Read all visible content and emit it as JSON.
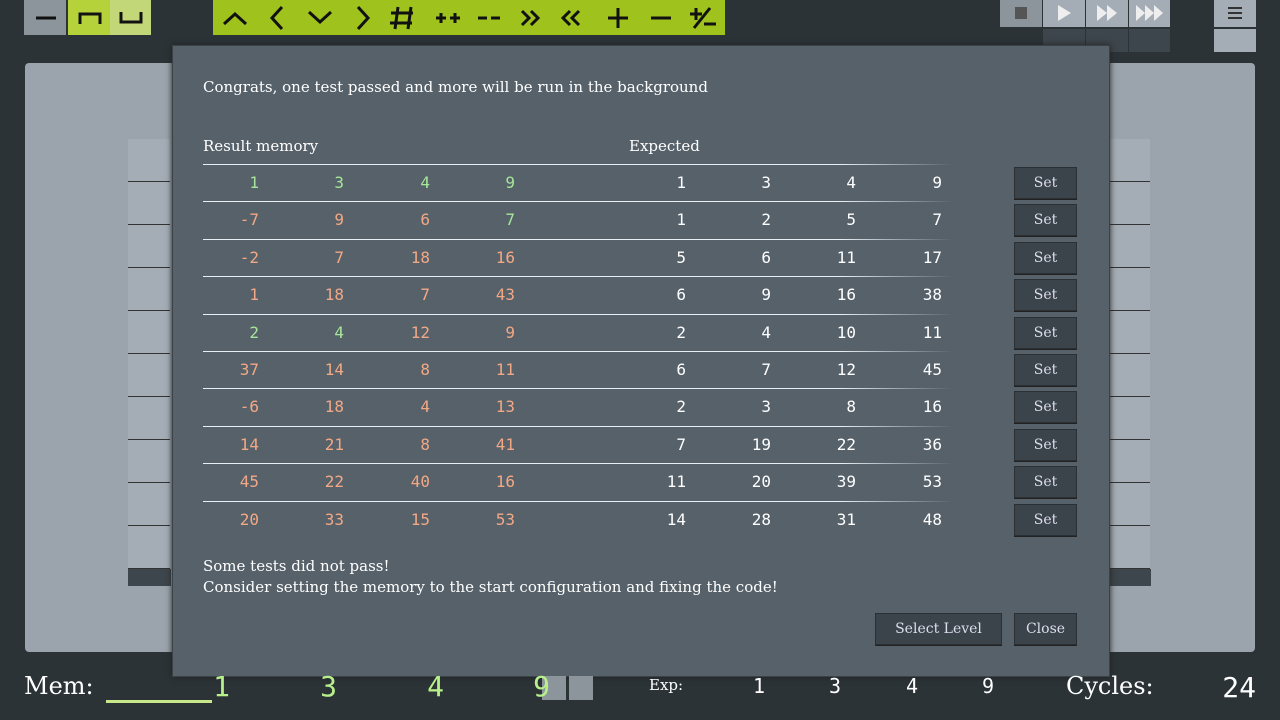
{
  "dialog": {
    "message": "Congrats, one test passed and more will be run in the background",
    "result_header": "Result memory",
    "expected_header": "Expected",
    "rows": [
      {
        "result": [
          1,
          3,
          4,
          9
        ],
        "expected": [
          1,
          3,
          4,
          9
        ],
        "button": "Set"
      },
      {
        "result": [
          -7,
          9,
          6,
          7
        ],
        "expected": [
          1,
          2,
          5,
          7
        ],
        "button": "Set"
      },
      {
        "result": [
          -2,
          7,
          18,
          16
        ],
        "expected": [
          5,
          6,
          11,
          17
        ],
        "button": "Set"
      },
      {
        "result": [
          1,
          18,
          7,
          43
        ],
        "expected": [
          6,
          9,
          16,
          38
        ],
        "button": "Set"
      },
      {
        "result": [
          2,
          4,
          12,
          9
        ],
        "expected": [
          2,
          4,
          10,
          11
        ],
        "button": "Set"
      },
      {
        "result": [
          37,
          14,
          8,
          11
        ],
        "expected": [
          6,
          7,
          12,
          45
        ],
        "button": "Set"
      },
      {
        "result": [
          -6,
          18,
          4,
          13
        ],
        "expected": [
          2,
          3,
          8,
          16
        ],
        "button": "Set"
      },
      {
        "result": [
          14,
          21,
          8,
          41
        ],
        "expected": [
          7,
          19,
          22,
          36
        ],
        "button": "Set"
      },
      {
        "result": [
          45,
          22,
          40,
          16
        ],
        "expected": [
          11,
          20,
          39,
          53
        ],
        "button": "Set"
      },
      {
        "result": [
          20,
          33,
          15,
          53
        ],
        "expected": [
          14,
          28,
          31,
          48
        ],
        "button": "Set"
      }
    ],
    "footer": [
      "Some tests did not pass!",
      "Consider setting the memory to the start configuration and fixing the code!"
    ],
    "buttons": [
      "Select Level",
      "Close"
    ]
  },
  "status_bar": {
    "mem_label": "Mem:",
    "mem": [
      1,
      3,
      4,
      9
    ],
    "exp_label": "Exp:",
    "exp": [
      1,
      3,
      4,
      9
    ],
    "cycles_label": "Cycles:",
    "cycles": 24
  }
}
